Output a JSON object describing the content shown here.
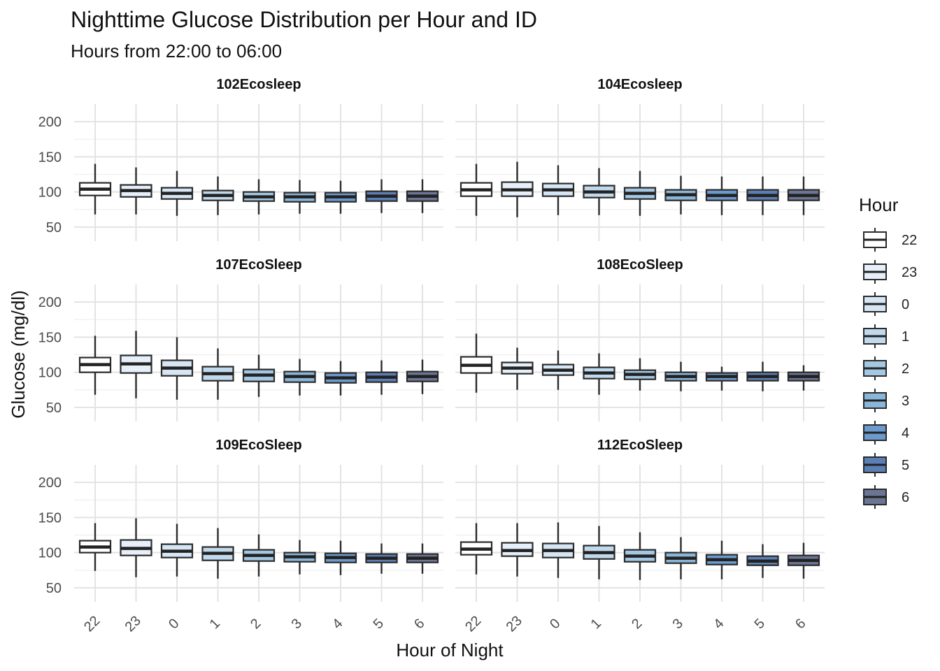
{
  "chart_data": {
    "type": "boxplot",
    "title": "Nighttime Glucose Distribution per Hour and ID",
    "subtitle": "Hours from 22:00 to 06:00",
    "xlabel": "Hour of Night",
    "ylabel": "Glucose (mg/dl)",
    "yticks": [
      50,
      100,
      150,
      200
    ],
    "ylim": [
      30,
      225
    ],
    "categories": [
      "22",
      "23",
      "0",
      "1",
      "2",
      "3",
      "4",
      "5",
      "6"
    ],
    "legend": {
      "title": "Hour",
      "position": "right",
      "entries": [
        "22",
        "23",
        "0",
        "1",
        "2",
        "3",
        "4",
        "5",
        "6"
      ]
    },
    "colors": {
      "22": "#ffffff",
      "23": "#e7f0fa",
      "0": "#d6e6f4",
      "1": "#c1d9ec",
      "2": "#a4c8e3",
      "3": "#8ab6da",
      "4": "#6d9acd",
      "5": "#5b7fb5",
      "6": "#6b7594"
    },
    "grid": true,
    "panels": [
      {
        "id": "102Ecosleep",
        "boxes": [
          {
            "hour": "22",
            "min": 68,
            "q1": 95,
            "median": 104,
            "q3": 113,
            "max": 140
          },
          {
            "hour": "23",
            "min": 68,
            "q1": 93,
            "median": 102,
            "q3": 110,
            "max": 135
          },
          {
            "hour": "0",
            "min": 66,
            "q1": 90,
            "median": 98,
            "q3": 106,
            "max": 130
          },
          {
            "hour": "1",
            "min": 67,
            "q1": 88,
            "median": 95,
            "q3": 102,
            "max": 122
          },
          {
            "hour": "2",
            "min": 68,
            "q1": 87,
            "median": 93,
            "q3": 100,
            "max": 118
          },
          {
            "hour": "3",
            "min": 69,
            "q1": 86,
            "median": 93,
            "q3": 99,
            "max": 117
          },
          {
            "hour": "4",
            "min": 69,
            "q1": 86,
            "median": 93,
            "q3": 99,
            "max": 116
          },
          {
            "hour": "5",
            "min": 70,
            "q1": 87,
            "median": 94,
            "q3": 101,
            "max": 118
          },
          {
            "hour": "6",
            "min": 70,
            "q1": 87,
            "median": 94,
            "q3": 101,
            "max": 118
          }
        ]
      },
      {
        "id": "104Ecosleep",
        "boxes": [
          {
            "hour": "22",
            "min": 66,
            "q1": 94,
            "median": 103,
            "q3": 113,
            "max": 140
          },
          {
            "hour": "23",
            "min": 64,
            "q1": 94,
            "median": 103,
            "q3": 114,
            "max": 143
          },
          {
            "hour": "0",
            "min": 67,
            "q1": 94,
            "median": 103,
            "q3": 112,
            "max": 138
          },
          {
            "hour": "1",
            "min": 67,
            "q1": 92,
            "median": 100,
            "q3": 109,
            "max": 134
          },
          {
            "hour": "2",
            "min": 66,
            "q1": 90,
            "median": 98,
            "q3": 106,
            "max": 130
          },
          {
            "hour": "3",
            "min": 68,
            "q1": 88,
            "median": 96,
            "q3": 103,
            "max": 123
          },
          {
            "hour": "4",
            "min": 67,
            "q1": 88,
            "median": 95,
            "q3": 103,
            "max": 122
          },
          {
            "hour": "5",
            "min": 67,
            "q1": 88,
            "median": 95,
            "q3": 103,
            "max": 122
          },
          {
            "hour": "6",
            "min": 67,
            "q1": 88,
            "median": 95,
            "q3": 103,
            "max": 122
          }
        ]
      },
      {
        "id": "107EcoSleep",
        "boxes": [
          {
            "hour": "22",
            "min": 68,
            "q1": 100,
            "median": 111,
            "q3": 121,
            "max": 152
          },
          {
            "hour": "23",
            "min": 63,
            "q1": 99,
            "median": 112,
            "q3": 124,
            "max": 159
          },
          {
            "hour": "0",
            "min": 61,
            "q1": 95,
            "median": 106,
            "q3": 117,
            "max": 150
          },
          {
            "hour": "1",
            "min": 61,
            "q1": 88,
            "median": 98,
            "q3": 108,
            "max": 134
          },
          {
            "hour": "2",
            "min": 65,
            "q1": 87,
            "median": 96,
            "q3": 104,
            "max": 125
          },
          {
            "hour": "3",
            "min": 67,
            "q1": 86,
            "median": 94,
            "q3": 101,
            "max": 119
          },
          {
            "hour": "4",
            "min": 67,
            "q1": 85,
            "median": 92,
            "q3": 99,
            "max": 116
          },
          {
            "hour": "5",
            "min": 68,
            "q1": 86,
            "median": 93,
            "q3": 100,
            "max": 117
          },
          {
            "hour": "6",
            "min": 69,
            "q1": 87,
            "median": 94,
            "q3": 101,
            "max": 118
          }
        ]
      },
      {
        "id": "108EcoSleep",
        "boxes": [
          {
            "hour": "22",
            "min": 71,
            "q1": 99,
            "median": 110,
            "q3": 122,
            "max": 155
          },
          {
            "hour": "23",
            "min": 75,
            "q1": 98,
            "median": 106,
            "q3": 114,
            "max": 135
          },
          {
            "hour": "0",
            "min": 75,
            "q1": 96,
            "median": 103,
            "q3": 111,
            "max": 131
          },
          {
            "hour": "1",
            "min": 68,
            "q1": 91,
            "median": 99,
            "q3": 107,
            "max": 127
          },
          {
            "hour": "2",
            "min": 74,
            "q1": 90,
            "median": 97,
            "q3": 103,
            "max": 120
          },
          {
            "hour": "3",
            "min": 73,
            "q1": 88,
            "median": 94,
            "q3": 100,
            "max": 115
          },
          {
            "hour": "4",
            "min": 74,
            "q1": 88,
            "median": 94,
            "q3": 99,
            "max": 108
          },
          {
            "hour": "5",
            "min": 73,
            "q1": 88,
            "median": 94,
            "q3": 100,
            "max": 115
          },
          {
            "hour": "6",
            "min": 74,
            "q1": 88,
            "median": 94,
            "q3": 100,
            "max": 110
          }
        ]
      },
      {
        "id": "109EcoSleep",
        "boxes": [
          {
            "hour": "22",
            "min": 74,
            "q1": 100,
            "median": 108,
            "q3": 117,
            "max": 142
          },
          {
            "hour": "23",
            "min": 65,
            "q1": 96,
            "median": 106,
            "q3": 118,
            "max": 149
          },
          {
            "hour": "0",
            "min": 66,
            "q1": 93,
            "median": 102,
            "q3": 112,
            "max": 141
          },
          {
            "hour": "1",
            "min": 63,
            "q1": 89,
            "median": 99,
            "q3": 108,
            "max": 135
          },
          {
            "hour": "2",
            "min": 66,
            "q1": 88,
            "median": 96,
            "q3": 104,
            "max": 126
          },
          {
            "hour": "3",
            "min": 69,
            "q1": 87,
            "median": 94,
            "q3": 100,
            "max": 118
          },
          {
            "hour": "4",
            "min": 68,
            "q1": 86,
            "median": 93,
            "q3": 99,
            "max": 117
          },
          {
            "hour": "5",
            "min": 70,
            "q1": 86,
            "median": 92,
            "q3": 98,
            "max": 113
          },
          {
            "hour": "6",
            "min": 70,
            "q1": 86,
            "median": 92,
            "q3": 98,
            "max": 113
          }
        ]
      },
      {
        "id": "112EcoSleep",
        "boxes": [
          {
            "hour": "22",
            "min": 69,
            "q1": 97,
            "median": 105,
            "q3": 115,
            "max": 142
          },
          {
            "hour": "23",
            "min": 66,
            "q1": 95,
            "median": 103,
            "q3": 114,
            "max": 142
          },
          {
            "hour": "0",
            "min": 64,
            "q1": 93,
            "median": 103,
            "q3": 113,
            "max": 143
          },
          {
            "hour": "1",
            "min": 62,
            "q1": 91,
            "median": 100,
            "q3": 110,
            "max": 138
          },
          {
            "hour": "2",
            "min": 61,
            "q1": 87,
            "median": 95,
            "q3": 104,
            "max": 129
          },
          {
            "hour": "3",
            "min": 62,
            "q1": 85,
            "median": 92,
            "q3": 100,
            "max": 122
          },
          {
            "hour": "4",
            "min": 62,
            "q1": 83,
            "median": 90,
            "q3": 97,
            "max": 117
          },
          {
            "hour": "5",
            "min": 64,
            "q1": 82,
            "median": 88,
            "q3": 95,
            "max": 112
          },
          {
            "hour": "6",
            "min": 63,
            "q1": 82,
            "median": 89,
            "q3": 96,
            "max": 114
          }
        ]
      }
    ]
  }
}
